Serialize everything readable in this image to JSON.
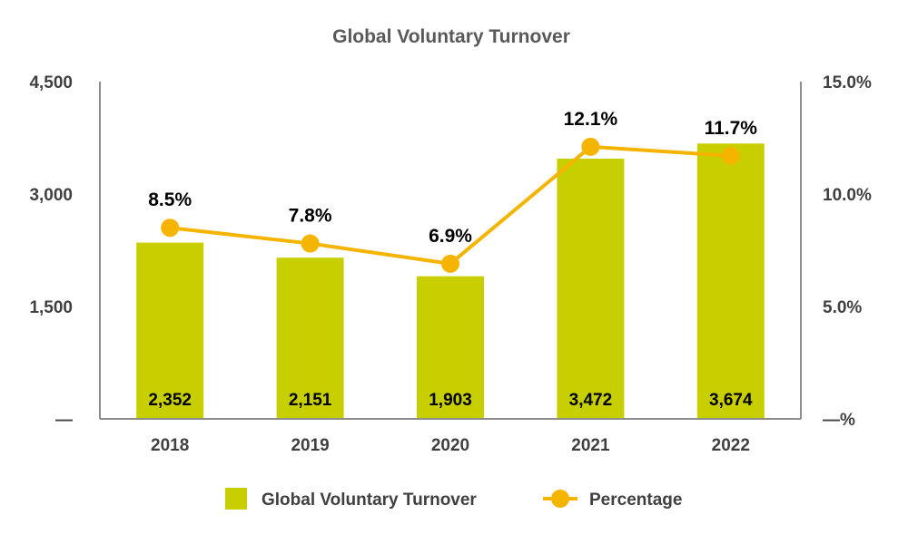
{
  "chart_data": {
    "type": "bar+line",
    "title": "Global Voluntary Turnover",
    "categories": [
      "2018",
      "2019",
      "2020",
      "2021",
      "2022"
    ],
    "series": [
      {
        "name": "Global Voluntary Turnover",
        "type": "bar",
        "axis": "left",
        "values": [
          2352,
          2151,
          1903,
          3472,
          3674
        ],
        "labels": [
          "2,352",
          "2,151",
          "1,903",
          "3,472",
          "3,674"
        ],
        "color": "#c8cf00"
      },
      {
        "name": "Percentage",
        "type": "line",
        "axis": "right",
        "values": [
          8.5,
          7.8,
          6.9,
          12.1,
          11.7
        ],
        "labels": [
          "8.5%",
          "7.8%",
          "6.9%",
          "12.1%",
          "11.7%"
        ],
        "color": "#f5b400"
      }
    ],
    "left_axis": {
      "ylim": [
        0,
        4500
      ],
      "ticks": [
        0,
        1500,
        3000,
        4500
      ],
      "tick_labels": [
        "—",
        "1,500",
        "3,000",
        "4,500"
      ]
    },
    "right_axis": {
      "ylim": [
        0,
        15
      ],
      "ticks": [
        0,
        5,
        10,
        15
      ],
      "tick_labels": [
        "—%",
        "5.0%",
        "10.0%",
        "15.0%"
      ]
    },
    "grid": false,
    "legend": "bottom-center"
  }
}
